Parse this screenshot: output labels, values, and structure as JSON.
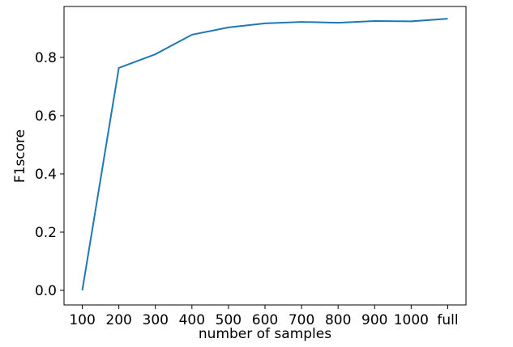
{
  "chart_data": {
    "type": "line",
    "x_label": "number of samples",
    "y_label": "F1score",
    "categories": [
      "100",
      "200",
      "300",
      "400",
      "500",
      "600",
      "700",
      "800",
      "900",
      "1000",
      "full"
    ],
    "series": [
      {
        "name": "F1score",
        "color": "#1f77b4",
        "values": [
          0.0,
          0.764,
          0.811,
          0.878,
          0.903,
          0.917,
          0.922,
          0.919,
          0.925,
          0.924,
          0.933
        ]
      }
    ],
    "ylim": [
      -0.05,
      0.975
    ],
    "yticks": [
      {
        "value": 0,
        "label": "0.0"
      },
      0.2,
      0.4,
      0.6,
      0.8
    ],
    "grid": false
  }
}
